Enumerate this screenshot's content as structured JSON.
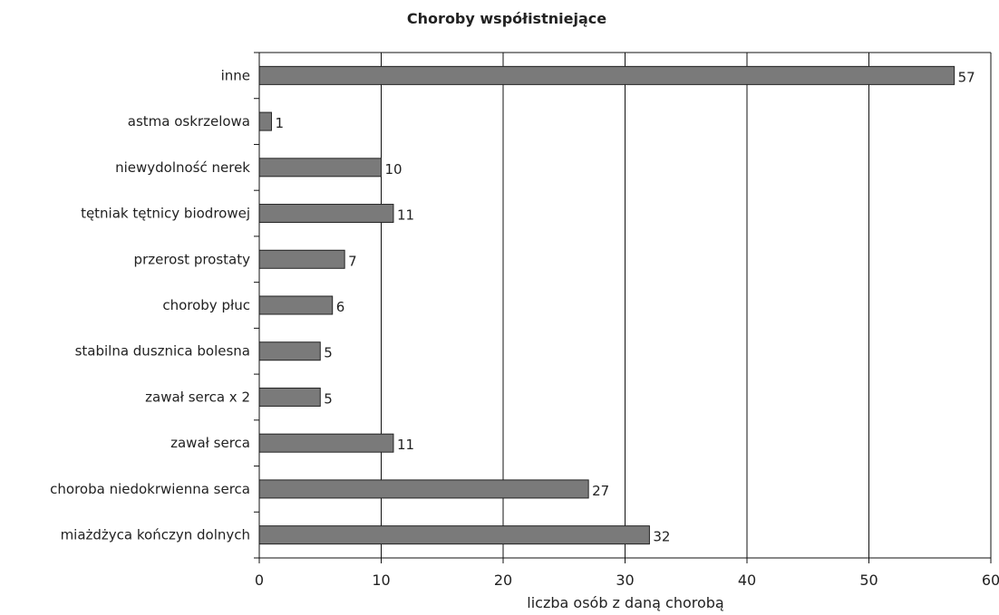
{
  "chart_data": {
    "type": "bar",
    "orientation": "horizontal",
    "title": "Choroby współistniejące",
    "xlabel": "liczba osób z daną chorobą",
    "ylabel": "",
    "xlim": [
      0,
      60
    ],
    "xticks": [
      0,
      10,
      20,
      30,
      40,
      50,
      60
    ],
    "grid": "vertical",
    "legend": "none",
    "bar_color": "#7a7a7a",
    "bar_edge_color": "#222222",
    "categories": [
      "inne",
      "astma oskrzelowa",
      "niewydolność nerek",
      "tętniak tętnicy biodrowej",
      "przerost prostaty",
      "choroby płuc",
      "stabilna dusznica bolesna",
      "zawał serca x 2",
      "zawał serca",
      "choroba niedokrwienna serca",
      "miażdżyca kończyn dolnych"
    ],
    "values": [
      57,
      1,
      10,
      11,
      7,
      6,
      5,
      5,
      11,
      27,
      32
    ]
  }
}
